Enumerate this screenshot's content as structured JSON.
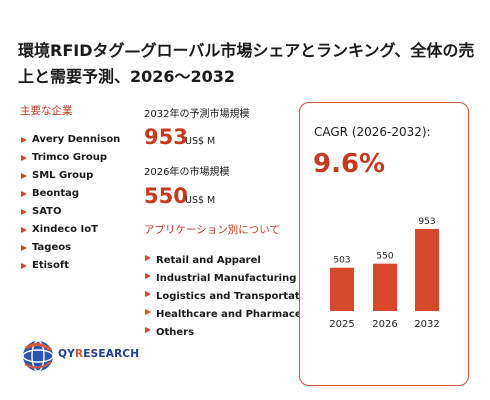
{
  "title": "環境RFIDタグ—グローバル市場シェアとランキング、全体の売上と需要予測、2026～2032",
  "companies_label": "主要な企業",
  "companies": [
    "Avery Dennison",
    "Trimco Group",
    "SML Group",
    "Beontag",
    "SATO",
    "Xindeco IoT",
    "Tageos",
    "Etisoft"
  ],
  "market": {
    "label_2032": "2032年の予測市場規模",
    "value_2032": "953",
    "label_2026": "2026年の市場規模",
    "value_2026": "550",
    "unit": "US$ M"
  },
  "apps_label": "アプリケーション別について",
  "applications": [
    "Retail and Apparel",
    "Industrial Manufacturing",
    "Logistics and Transportation",
    "Healthcare and Pharmaceuticals",
    "Others"
  ],
  "cagr": {
    "label": "CAGR (2026-2032):",
    "value": "9.6%"
  },
  "chart_data": {
    "type": "bar",
    "categories": [
      "2025",
      "2026",
      "2032"
    ],
    "values": [
      503,
      550,
      953
    ],
    "title": "",
    "xlabel": "",
    "ylabel": "",
    "ylim": [
      0,
      1000
    ],
    "color": "#d5482a"
  },
  "logo": {
    "q": "QY",
    "r": "R",
    "rest": "ESEARCH"
  },
  "colors": {
    "accent": "#c8381d",
    "bar": "#d5482a",
    "card_border": "#d8573a",
    "logo_blue": "#1f3f8f"
  }
}
